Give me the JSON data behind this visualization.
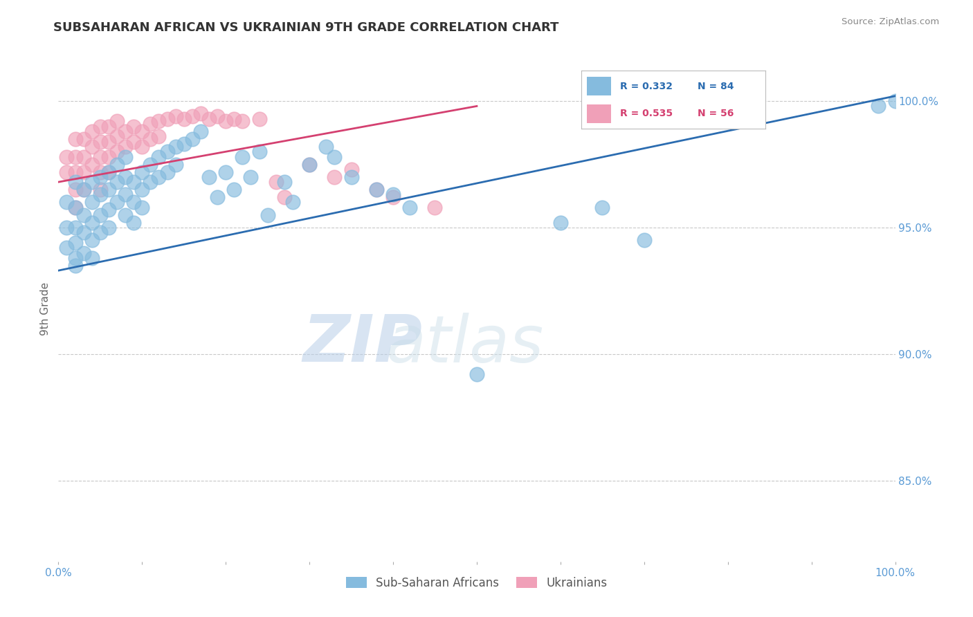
{
  "title": "SUBSAHARAN AFRICAN VS UKRAINIAN 9TH GRADE CORRELATION CHART",
  "source_text": "Source: ZipAtlas.com",
  "ylabel": "9th Grade",
  "y_tick_labels": [
    "85.0%",
    "90.0%",
    "95.0%",
    "100.0%"
  ],
  "y_tick_values": [
    0.85,
    0.9,
    0.95,
    1.0
  ],
  "x_min": 0.0,
  "x_max": 1.0,
  "y_min": 0.818,
  "y_max": 1.018,
  "blue_color": "#85bbde",
  "pink_color": "#f0a0b8",
  "blue_line_color": "#2b6cb0",
  "pink_line_color": "#d44070",
  "blue_R": 0.332,
  "blue_N": 84,
  "pink_R": 0.535,
  "pink_N": 56,
  "legend_label_blue": "Sub-Saharan Africans",
  "legend_label_pink": "Ukrainians",
  "watermark_zip": "ZIP",
  "watermark_atlas": "atlas",
  "grid_color": "#c8c8c8",
  "background_color": "#ffffff",
  "title_fontsize": 13,
  "tick_label_color": "#5b9bd5",
  "blue_trend_x0": 0.0,
  "blue_trend_y0": 0.933,
  "blue_trend_x1": 1.0,
  "blue_trend_y1": 1.002,
  "pink_trend_x0": 0.0,
  "pink_trend_y0": 0.968,
  "pink_trend_x1": 0.5,
  "pink_trend_y1": 0.998,
  "blue_scatter_x": [
    0.01,
    0.01,
    0.01,
    0.02,
    0.02,
    0.02,
    0.02,
    0.02,
    0.02,
    0.03,
    0.03,
    0.03,
    0.03,
    0.04,
    0.04,
    0.04,
    0.04,
    0.04,
    0.05,
    0.05,
    0.05,
    0.05,
    0.06,
    0.06,
    0.06,
    0.06,
    0.07,
    0.07,
    0.07,
    0.08,
    0.08,
    0.08,
    0.08,
    0.09,
    0.09,
    0.09,
    0.1,
    0.1,
    0.1,
    0.11,
    0.11,
    0.12,
    0.12,
    0.13,
    0.13,
    0.14,
    0.14,
    0.15,
    0.16,
    0.17,
    0.18,
    0.19,
    0.2,
    0.21,
    0.22,
    0.23,
    0.24,
    0.25,
    0.27,
    0.28,
    0.3,
    0.32,
    0.33,
    0.35,
    0.38,
    0.4,
    0.42,
    0.5,
    0.6,
    0.65,
    0.7,
    0.98,
    1.0
  ],
  "blue_scatter_y": [
    0.96,
    0.95,
    0.942,
    0.968,
    0.958,
    0.95,
    0.944,
    0.938,
    0.935,
    0.965,
    0.955,
    0.948,
    0.94,
    0.968,
    0.96,
    0.952,
    0.945,
    0.938,
    0.97,
    0.963,
    0.955,
    0.948,
    0.972,
    0.965,
    0.957,
    0.95,
    0.975,
    0.968,
    0.96,
    0.978,
    0.97,
    0.963,
    0.955,
    0.968,
    0.96,
    0.952,
    0.972,
    0.965,
    0.958,
    0.975,
    0.968,
    0.978,
    0.97,
    0.98,
    0.972,
    0.982,
    0.975,
    0.983,
    0.985,
    0.988,
    0.97,
    0.962,
    0.972,
    0.965,
    0.978,
    0.97,
    0.98,
    0.955,
    0.968,
    0.96,
    0.975,
    0.982,
    0.978,
    0.97,
    0.965,
    0.963,
    0.958,
    0.892,
    0.952,
    0.958,
    0.945,
    0.998,
    1.0
  ],
  "pink_scatter_x": [
    0.01,
    0.01,
    0.02,
    0.02,
    0.02,
    0.02,
    0.02,
    0.03,
    0.03,
    0.03,
    0.03,
    0.04,
    0.04,
    0.04,
    0.05,
    0.05,
    0.05,
    0.05,
    0.05,
    0.06,
    0.06,
    0.06,
    0.06,
    0.07,
    0.07,
    0.07,
    0.08,
    0.08,
    0.09,
    0.09,
    0.1,
    0.1,
    0.11,
    0.11,
    0.12,
    0.12,
    0.13,
    0.14,
    0.15,
    0.16,
    0.17,
    0.18,
    0.19,
    0.2,
    0.21,
    0.22,
    0.24,
    0.26,
    0.27,
    0.3,
    0.33,
    0.35,
    0.38,
    0.4,
    0.45
  ],
  "pink_scatter_y": [
    0.978,
    0.972,
    0.985,
    0.978,
    0.972,
    0.965,
    0.958,
    0.985,
    0.978,
    0.972,
    0.965,
    0.988,
    0.982,
    0.975,
    0.99,
    0.984,
    0.978,
    0.972,
    0.965,
    0.99,
    0.984,
    0.978,
    0.972,
    0.992,
    0.986,
    0.98,
    0.988,
    0.982,
    0.99,
    0.984,
    0.988,
    0.982,
    0.991,
    0.985,
    0.992,
    0.986,
    0.993,
    0.994,
    0.993,
    0.994,
    0.995,
    0.993,
    0.994,
    0.992,
    0.993,
    0.992,
    0.993,
    0.968,
    0.962,
    0.975,
    0.97,
    0.973,
    0.965,
    0.962,
    0.958
  ]
}
